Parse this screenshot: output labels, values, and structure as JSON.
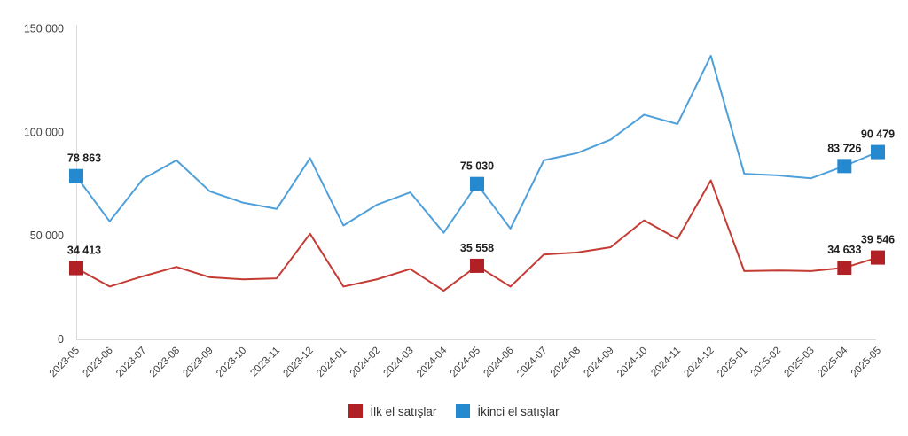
{
  "chart_data": {
    "type": "line",
    "title": "",
    "xlabel": "",
    "ylabel": "",
    "grid": false,
    "legend_position": "bottom",
    "axis_line_color": "#d9d9d9",
    "axis_text_color": "#404040",
    "data_label_color": "#1f1f1f",
    "background_color": "#ffffff",
    "categories": [
      "2023-05",
      "2023-06",
      "2023-07",
      "2023-08",
      "2023-09",
      "2023-10",
      "2023-11",
      "2023-12",
      "2024-01",
      "2024-02",
      "2024-03",
      "2024-04",
      "2024-05",
      "2024-06",
      "2024-07",
      "2024-08",
      "2024-09",
      "2024-10",
      "2024-11",
      "2024-12",
      "2025-01",
      "2025-02",
      "2025-03",
      "2025-04",
      "2025-05"
    ],
    "y_axis": {
      "min": 0,
      "max": 150000,
      "ticks": [
        {
          "value": 0,
          "label": "0"
        },
        {
          "value": 50000,
          "label": "50 000"
        },
        {
          "value": 100000,
          "label": "100 000"
        },
        {
          "value": 150000,
          "label": "150 000"
        }
      ]
    },
    "series": [
      {
        "name": "İlk el satışlar",
        "line_color": "#c43b34",
        "marker_color": "#b02025",
        "values": [
          34413,
          25500,
          30500,
          35000,
          30000,
          29000,
          29500,
          51000,
          25500,
          29000,
          34000,
          23500,
          35558,
          25500,
          41000,
          42000,
          44500,
          57500,
          48500,
          76800,
          33000,
          33300,
          33000,
          34633,
          39546
        ],
        "labeled_points": [
          {
            "index": 0,
            "label": "34 413"
          },
          {
            "index": 12,
            "label": "35 558"
          },
          {
            "index": 23,
            "label": "34 633"
          },
          {
            "index": 24,
            "label": "39 546"
          }
        ]
      },
      {
        "name": "İkinci el satışlar",
        "line_color": "#4fa0da",
        "marker_color": "#2589cf",
        "values": [
          78863,
          57000,
          77500,
          86500,
          71500,
          66000,
          63000,
          87500,
          55000,
          65000,
          71000,
          51500,
          75030,
          53500,
          86500,
          90000,
          96500,
          108500,
          104000,
          137000,
          80000,
          79200,
          77800,
          83726,
          90479
        ],
        "labeled_points": [
          {
            "index": 0,
            "label": "78 863"
          },
          {
            "index": 12,
            "label": "75 030"
          },
          {
            "index": 23,
            "label": "83 726"
          },
          {
            "index": 24,
            "label": "90 479"
          }
        ]
      }
    ]
  }
}
